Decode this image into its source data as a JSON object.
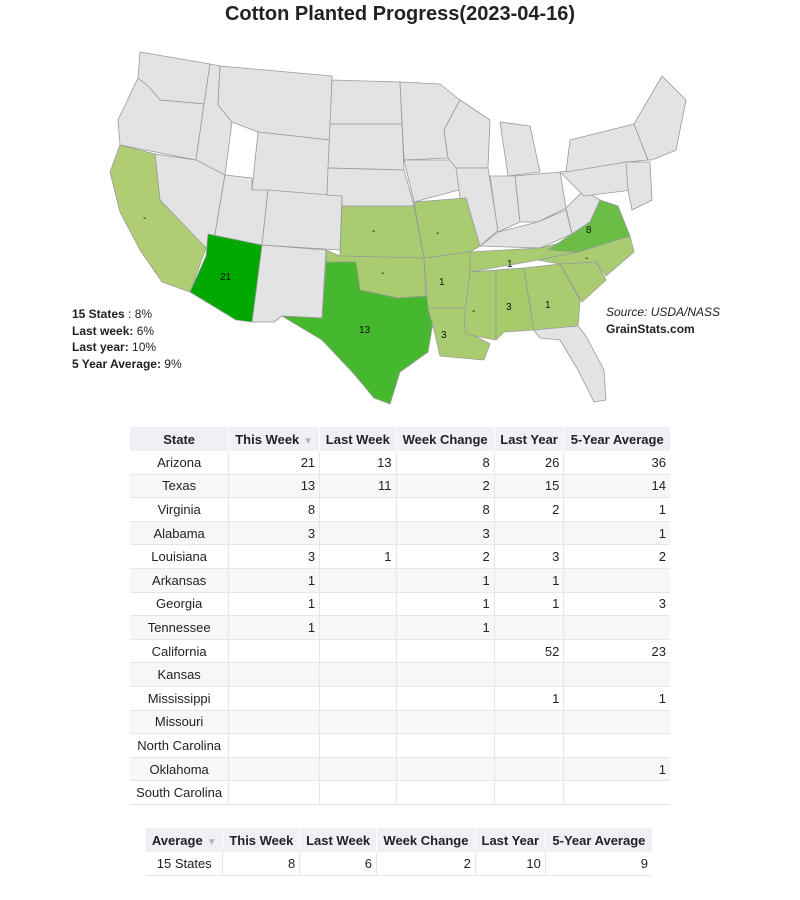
{
  "title": "Cotton Planted Progress(2023-04-16)",
  "colors": {
    "no_data": "#e3e3e3",
    "low": "#a9cc71",
    "mid_low": "#8bc45e",
    "mid": "#6abd45",
    "high": "#45b82e",
    "highest": "#00a800",
    "border": "#9a9a9a"
  },
  "summary": {
    "states_label": "15 States",
    "states_value": ": 8%",
    "last_week_label": "Last week:",
    "last_week_value": "6%",
    "last_year_label": "Last year:",
    "last_year_value": "10%",
    "five_year_label": "5 Year Average:",
    "five_year_value": "9%"
  },
  "source": {
    "text": "Source: USDA/NASS",
    "site": "GrainStats.com"
  },
  "map_labels": {
    "arizona": "21",
    "texas": "13",
    "virginia": "8",
    "alabama": "3",
    "louisiana": "3",
    "arkansas": "1",
    "georgia": "1",
    "tennessee": "1",
    "california": "-",
    "kansas": "-",
    "missouri": "-",
    "oklahoma": "-",
    "mississippi": "-",
    "north_carolina": "-",
    "south_carolina": ""
  },
  "table": {
    "headers": [
      "State",
      "This Week",
      "Last Week",
      "Week Change",
      "Last Year",
      "5-Year Average"
    ],
    "sort_icon": "▼",
    "rows": [
      [
        "Arizona",
        "21",
        "13",
        "8",
        "26",
        "36"
      ],
      [
        "Texas",
        "13",
        "11",
        "2",
        "15",
        "14"
      ],
      [
        "Virginia",
        "8",
        "",
        "8",
        "2",
        "1"
      ],
      [
        "Alabama",
        "3",
        "",
        "3",
        "",
        "1"
      ],
      [
        "Louisiana",
        "3",
        "1",
        "2",
        "3",
        "2"
      ],
      [
        "Arkansas",
        "1",
        "",
        "1",
        "1",
        ""
      ],
      [
        "Georgia",
        "1",
        "",
        "1",
        "1",
        "3"
      ],
      [
        "Tennessee",
        "1",
        "",
        "1",
        "",
        ""
      ],
      [
        "California",
        "",
        "",
        "",
        "52",
        "23"
      ],
      [
        "Kansas",
        "",
        "",
        "",
        "",
        ""
      ],
      [
        "Mississippi",
        "",
        "",
        "",
        "1",
        "1"
      ],
      [
        "Missouri",
        "",
        "",
        "",
        "",
        ""
      ],
      [
        "North Carolina",
        "",
        "",
        "",
        "",
        ""
      ],
      [
        "Oklahoma",
        "",
        "",
        "",
        "",
        "1"
      ],
      [
        "South Carolina",
        "",
        "",
        "",
        "",
        ""
      ]
    ]
  },
  "avg_table": {
    "headers": [
      "Average",
      "This Week",
      "Last Week",
      "Week Change",
      "Last Year",
      "5-Year Average"
    ],
    "sort_icon": "▼",
    "rows": [
      [
        "15 States",
        "8",
        "6",
        "2",
        "10",
        "9"
      ]
    ]
  }
}
